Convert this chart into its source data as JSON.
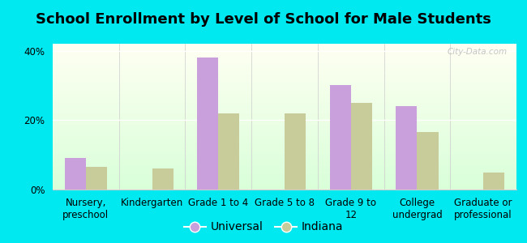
{
  "title": "School Enrollment by Level of School for Male Students",
  "categories": [
    "Nursery,\npreschool",
    "Kindergarten",
    "Grade 1 to 4",
    "Grade 5 to 8",
    "Grade 9 to\n12",
    "College\nundergrad",
    "Graduate or\nprofessional"
  ],
  "universal": [
    9,
    0,
    38,
    0,
    30,
    24,
    0
  ],
  "indiana": [
    6.5,
    6,
    22,
    22,
    25,
    16.5,
    5
  ],
  "color_universal": "#c9a0dc",
  "color_indiana": "#c8cc9a",
  "background_outer": "#00e8f0",
  "ylim": [
    0,
    42
  ],
  "yticks": [
    0,
    20,
    40
  ],
  "ytick_labels": [
    "0%",
    "20%",
    "40%"
  ],
  "legend_universal": "Universal",
  "legend_indiana": "Indiana",
  "title_fontsize": 13,
  "tick_fontsize": 8.5,
  "legend_fontsize": 10,
  "bar_width": 0.32
}
